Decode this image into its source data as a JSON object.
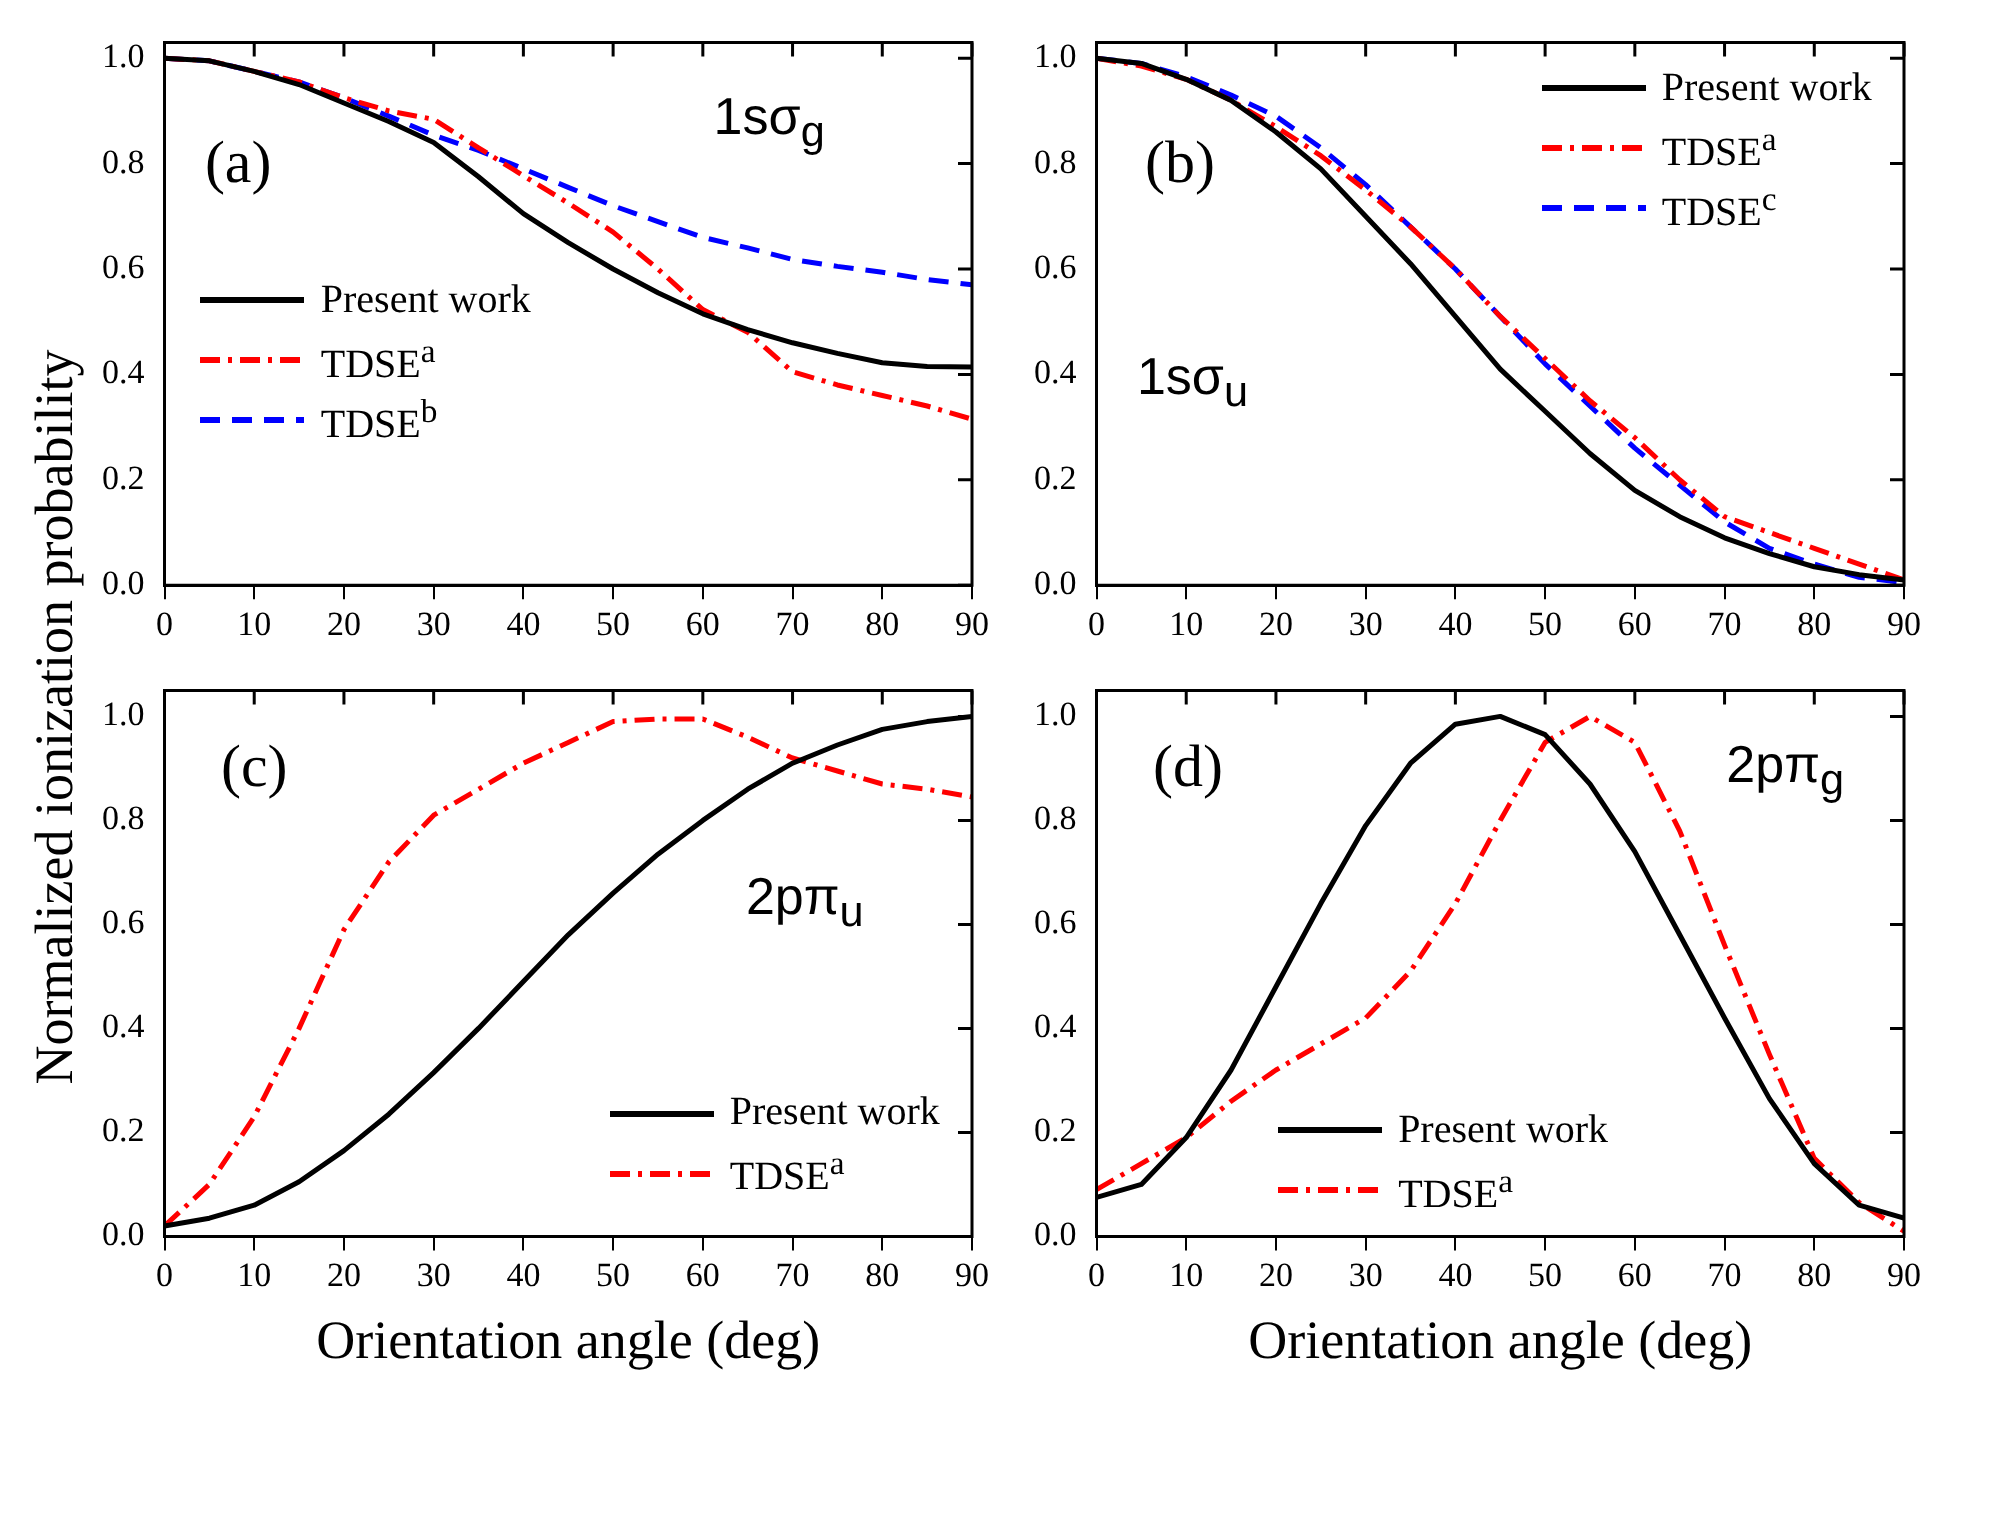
{
  "chart_data": [
    {
      "type": "line",
      "ylabel": "Normalized ionization probability",
      "annotations": [
        "(a)",
        "1sσ$_{g}$"
      ],
      "x": [
        0,
        5,
        10,
        15,
        20,
        25,
        30,
        35,
        40,
        45,
        50,
        55,
        60,
        65,
        70,
        75,
        80,
        85,
        90
      ],
      "xlim": [
        0,
        90
      ],
      "xticks": [
        0,
        10,
        20,
        30,
        40,
        50,
        60,
        70,
        80,
        90
      ],
      "ylim": [
        0,
        1.03
      ],
      "yticks": [
        {
          "value": 0,
          "label": "0.0"
        },
        {
          "value": 0.2,
          "label": "0.2"
        },
        {
          "value": 0.4,
          "label": "0.4"
        },
        {
          "value": 0.6,
          "label": "0.6"
        },
        {
          "value": 0.8,
          "label": "0.8"
        },
        {
          "value": 1,
          "label": "1.0"
        }
      ],
      "legend": "left",
      "grid": false,
      "marker": "none",
      "series": [
        {
          "name": "Present work",
          "color": "#000000",
          "line_style": "solid",
          "values": [
            1.0,
            0.995,
            0.975,
            0.95,
            0.915,
            0.88,
            0.84,
            0.775,
            0.705,
            0.65,
            0.6,
            0.555,
            0.515,
            0.485,
            0.46,
            0.44,
            0.422,
            0.415,
            0.414
          ]
        },
        {
          "name": "TDSE$^{a}$",
          "color": "#ff0000",
          "line_style": "dashdot",
          "values": [
            1.0,
            0.995,
            0.975,
            0.955,
            0.925,
            0.9,
            0.884,
            0.83,
            0.777,
            0.725,
            0.67,
            0.6,
            0.523,
            0.48,
            0.405,
            0.38,
            0.36,
            0.34,
            0.315
          ]
        },
        {
          "name": "TDSE$^{b}$",
          "color": "#0000ff",
          "line_style": "dashed",
          "values": [
            1.0,
            0.995,
            0.975,
            0.955,
            0.925,
            0.89,
            0.854,
            0.825,
            0.79,
            0.755,
            0.72,
            0.69,
            0.66,
            0.64,
            0.618,
            0.605,
            0.594,
            0.58,
            0.57
          ]
        }
      ]
    },
    {
      "type": "line",
      "annotations": [
        "(b)",
        "1sσ$_{u}$"
      ],
      "x": [
        0,
        5,
        10,
        15,
        20,
        25,
        30,
        35,
        40,
        45,
        50,
        55,
        60,
        65,
        70,
        75,
        80,
        85,
        90
      ],
      "xlim": [
        0,
        90
      ],
      "xticks": [
        0,
        10,
        20,
        30,
        40,
        50,
        60,
        70,
        80,
        90
      ],
      "ylim": [
        0,
        1.03
      ],
      "yticks": [
        {
          "value": 0,
          "label": "0.0"
        },
        {
          "value": 0.2,
          "label": "0.2"
        },
        {
          "value": 0.4,
          "label": "0.4"
        },
        {
          "value": 0.6,
          "label": "0.6"
        },
        {
          "value": 0.8,
          "label": "0.8"
        },
        {
          "value": 1,
          "label": "1.0"
        }
      ],
      "legend": "top right",
      "grid": false,
      "marker": "none",
      "series": [
        {
          "name": "Present work",
          "color": "#000000",
          "line_style": "solid",
          "values": [
            1.0,
            0.99,
            0.96,
            0.92,
            0.86,
            0.79,
            0.7,
            0.61,
            0.51,
            0.41,
            0.33,
            0.25,
            0.18,
            0.13,
            0.09,
            0.06,
            0.035,
            0.02,
            0.01
          ]
        },
        {
          "name": "TDSE$^{a}$",
          "color": "#ff0000",
          "line_style": "dashdot",
          "values": [
            1.0,
            0.985,
            0.96,
            0.92,
            0.87,
            0.815,
            0.75,
            0.68,
            0.6,
            0.51,
            0.43,
            0.35,
            0.28,
            0.2,
            0.13,
            0.1,
            0.07,
            0.04,
            0.01
          ]
        },
        {
          "name": "TDSE$^{c}$",
          "color": "#0000ff",
          "line_style": "dashed",
          "values": [
            1.0,
            0.99,
            0.965,
            0.93,
            0.89,
            0.83,
            0.76,
            0.68,
            0.6,
            0.51,
            0.42,
            0.34,
            0.26,
            0.19,
            0.12,
            0.07,
            0.04,
            0.015,
            0.005
          ]
        }
      ]
    },
    {
      "type": "line",
      "xlabel": "Orientation angle (deg)",
      "annotations": [
        "(c)",
        "2pπ$_{u}$"
      ],
      "x": [
        0,
        5,
        10,
        15,
        20,
        25,
        30,
        35,
        40,
        45,
        50,
        55,
        60,
        65,
        70,
        75,
        80,
        85,
        90
      ],
      "xlim": [
        0,
        90
      ],
      "xticks": [
        0,
        10,
        20,
        30,
        40,
        50,
        60,
        70,
        80,
        90
      ],
      "ylim": [
        0,
        1.05
      ],
      "yticks": [
        {
          "value": 0,
          "label": "0.0"
        },
        {
          "value": 0.2,
          "label": "0.2"
        },
        {
          "value": 0.4,
          "label": "0.4"
        },
        {
          "value": 0.6,
          "label": "0.6"
        },
        {
          "value": 0.8,
          "label": "0.8"
        },
        {
          "value": 1,
          "label": "1.0"
        }
      ],
      "legend": "bottom right",
      "grid": false,
      "marker": "none",
      "series": [
        {
          "name": "Present work",
          "color": "#000000",
          "line_style": "solid",
          "values": [
            0.02,
            0.035,
            0.06,
            0.105,
            0.165,
            0.235,
            0.315,
            0.4,
            0.49,
            0.58,
            0.66,
            0.735,
            0.8,
            0.86,
            0.91,
            0.945,
            0.975,
            0.99,
            1.0
          ]
        },
        {
          "name": "TDSE$^{a}$",
          "color": "#ff0000",
          "line_style": "dashdot",
          "values": [
            0.02,
            0.1,
            0.23,
            0.4,
            0.59,
            0.72,
            0.81,
            0.86,
            0.91,
            0.95,
            0.99,
            0.995,
            0.995,
            0.96,
            0.92,
            0.895,
            0.87,
            0.86,
            0.845
          ]
        }
      ]
    },
    {
      "type": "line",
      "xlabel": "Orientation angle (deg)",
      "annotations": [
        "(d)",
        "2pπ$_{g}$"
      ],
      "x": [
        0,
        5,
        10,
        15,
        20,
        25,
        30,
        35,
        40,
        45,
        50,
        55,
        60,
        65,
        70,
        75,
        80,
        85,
        90
      ],
      "xlim": [
        0,
        90
      ],
      "xticks": [
        0,
        10,
        20,
        30,
        40,
        50,
        60,
        70,
        80,
        90
      ],
      "ylim": [
        0,
        1.05
      ],
      "yticks": [
        {
          "value": 0,
          "label": "0.0"
        },
        {
          "value": 0.2,
          "label": "0.2"
        },
        {
          "value": 0.4,
          "label": "0.4"
        },
        {
          "value": 0.6,
          "label": "0.6"
        },
        {
          "value": 0.8,
          "label": "0.8"
        },
        {
          "value": 1,
          "label": "1.0"
        }
      ],
      "legend": "bottom",
      "grid": false,
      "marker": "none",
      "series": [
        {
          "name": "Present work",
          "color": "#000000",
          "line_style": "solid",
          "values": [
            0.075,
            0.1,
            0.19,
            0.32,
            0.48,
            0.64,
            0.79,
            0.91,
            0.985,
            1.0,
            0.965,
            0.87,
            0.74,
            0.58,
            0.42,
            0.265,
            0.14,
            0.06,
            0.035
          ]
        },
        {
          "name": "TDSE$^{a}$",
          "color": "#ff0000",
          "line_style": "dashdot",
          "values": [
            0.09,
            0.14,
            0.19,
            0.26,
            0.32,
            0.37,
            0.42,
            0.51,
            0.64,
            0.8,
            0.95,
            1.0,
            0.95,
            0.78,
            0.56,
            0.35,
            0.15,
            0.065,
            0.01
          ]
        }
      ]
    }
  ]
}
